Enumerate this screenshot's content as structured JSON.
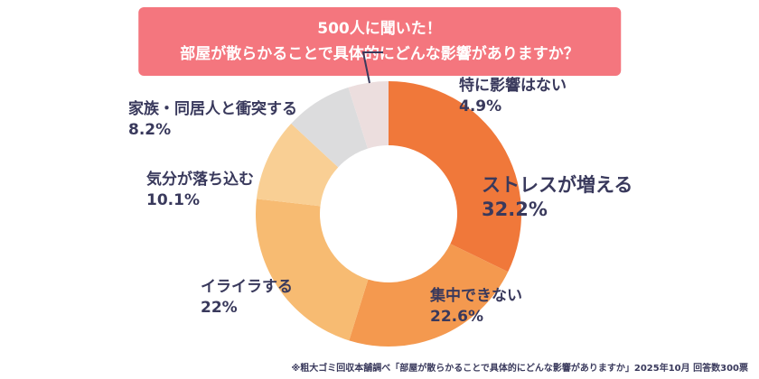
{
  "title": {
    "line1": "500人に聞いた！",
    "line2": "部屋が散らかることで具体的にどんな影響がありますか？"
  },
  "chart_data": {
    "type": "pie",
    "donut": true,
    "title": "部屋が散らかることで具体的にどんな影響がありますか",
    "categories": [
      "ストレスが増える",
      "集中できない",
      "イライラする",
      "気分が落ち込む",
      "家族・同居人と衝突する",
      "特に影響はない"
    ],
    "values": [
      32.2,
      22.6,
      22,
      10.1,
      8.2,
      4.9
    ],
    "labels_display": [
      "32.2%",
      "22.6%",
      "22%",
      "10.1%",
      "8.2%",
      "4.9%"
    ],
    "colors": [
      "#f0783a",
      "#f4994f",
      "#f7bb72",
      "#f9cf94",
      "#dcdcdd",
      "#ecdede"
    ],
    "start_angle_deg": 0,
    "direction": "clockwise",
    "inner_radius_ratio": 0.52,
    "legend_position": "callout-labels",
    "grid": false
  },
  "footer": {
    "note": "※粗大ゴミ回収本舗調べ「部屋が散らかることで具体的にどんな影響がありますか」2025年10月 回答数300票"
  }
}
